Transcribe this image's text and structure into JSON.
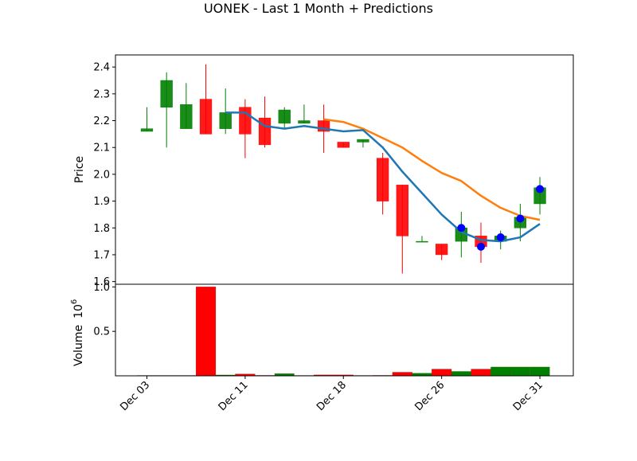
{
  "chart_data": {
    "type": "candlestick",
    "title": "UONEK - Last 1 Month + Predictions",
    "price_panel": {
      "ylabel": "Price",
      "ylim": [
        1.59,
        2.445
      ],
      "yticks": [
        1.6,
        1.7,
        1.8,
        1.9,
        2.0,
        2.1,
        2.2,
        2.3,
        2.4
      ],
      "ytick_labels": [
        "1.6",
        "1.7",
        "1.8",
        "1.9",
        "2.0",
        "2.1",
        "2.2",
        "2.3",
        "2.4"
      ]
    },
    "volume_panel": {
      "ylabel": "Volume",
      "scale_label": "10",
      "scale_exponent": "6",
      "ylim": [
        0,
        1.03
      ],
      "yticks": [
        0.5,
        1.0
      ],
      "ytick_labels": [
        "0.5",
        "1.0"
      ]
    },
    "xlim": [
      -1.6,
      21.7
    ],
    "x_ticks": [
      {
        "index": 0,
        "label": "Dec 03"
      },
      {
        "index": 5,
        "label": "Dec 11"
      },
      {
        "index": 10,
        "label": "Dec 18"
      },
      {
        "index": 15,
        "label": "Dec 26"
      },
      {
        "index": 20,
        "label": "Dec 31"
      }
    ],
    "colors": {
      "up": "#008000",
      "down": "#ff0000",
      "short_ma": "#1f77b4",
      "long_ma": "#ff7f0e",
      "prediction": "#0000ff"
    },
    "candles": [
      {
        "open": 2.16,
        "high": 2.25,
        "low": 2.16,
        "close": 2.17,
        "volume": 0.005
      },
      {
        "open": 2.25,
        "high": 2.38,
        "low": 2.1,
        "close": 2.35,
        "volume": 0.005
      },
      {
        "open": 2.17,
        "high": 2.34,
        "low": 2.17,
        "close": 2.26,
        "volume": 0.005
      },
      {
        "open": 2.28,
        "high": 2.41,
        "low": 2.15,
        "close": 2.15,
        "volume": 1.0
      },
      {
        "open": 2.17,
        "high": 2.32,
        "low": 2.15,
        "close": 2.23,
        "volume": 0.01
      },
      {
        "open": 2.25,
        "high": 2.28,
        "low": 2.06,
        "close": 2.15,
        "volume": 0.02
      },
      {
        "open": 2.21,
        "high": 2.29,
        "low": 2.1,
        "close": 2.11,
        "volume": 0.005
      },
      {
        "open": 2.19,
        "high": 2.25,
        "low": 2.17,
        "close": 2.24,
        "volume": 0.025
      },
      {
        "open": 2.19,
        "high": 2.26,
        "low": 2.19,
        "close": 2.2,
        "volume": 0.005
      },
      {
        "open": 2.2,
        "high": 2.26,
        "low": 2.08,
        "close": 2.16,
        "volume": 0.01
      },
      {
        "open": 2.12,
        "high": 2.12,
        "low": 2.1,
        "close": 2.1,
        "volume": 0.01
      },
      {
        "open": 2.12,
        "high": 2.13,
        "low": 2.1,
        "close": 2.13,
        "volume": 0.005
      },
      {
        "open": 2.06,
        "high": 2.08,
        "low": 1.85,
        "close": 1.9,
        "volume": 0.005
      },
      {
        "open": 1.96,
        "high": 1.96,
        "low": 1.63,
        "close": 1.77,
        "volume": 0.04
      },
      {
        "open": 1.75,
        "high": 1.77,
        "low": 1.75,
        "close": 1.75,
        "volume": 0.03
      },
      {
        "open": 1.74,
        "high": 1.74,
        "low": 1.68,
        "close": 1.7,
        "volume": 0.075
      },
      {
        "open": 1.75,
        "high": 1.86,
        "low": 1.69,
        "close": 1.8,
        "volume": 0.05
      },
      {
        "open": 1.77,
        "high": 1.82,
        "low": 1.67,
        "close": 1.73,
        "volume": 0.075
      },
      {
        "open": 1.75,
        "high": 1.79,
        "low": 1.72,
        "close": 1.77,
        "volume": 0.1
      },
      {
        "open": 1.8,
        "high": 1.89,
        "low": 1.75,
        "close": 1.84,
        "volume": 0.1
      },
      {
        "open": 1.89,
        "high": 1.99,
        "low": 1.85,
        "close": 1.95,
        "volume": 0.1
      }
    ],
    "short_ma": [
      null,
      null,
      null,
      null,
      2.23,
      2.23,
      2.18,
      2.17,
      2.18,
      2.17,
      2.16,
      2.165,
      2.1,
      2.01,
      1.93,
      1.85,
      1.785,
      1.755,
      1.75,
      1.765,
      1.815
    ],
    "long_ma": [
      null,
      null,
      null,
      null,
      null,
      null,
      null,
      null,
      null,
      2.205,
      2.195,
      2.17,
      2.135,
      2.1,
      2.05,
      2.005,
      1.975,
      1.92,
      1.875,
      1.845,
      1.83
    ],
    "predictions": [
      {
        "index": 16,
        "value": 1.8
      },
      {
        "index": 17,
        "value": 1.73
      },
      {
        "index": 18,
        "value": 1.765
      },
      {
        "index": 19,
        "value": 1.835
      },
      {
        "index": 20,
        "value": 1.945
      }
    ]
  }
}
